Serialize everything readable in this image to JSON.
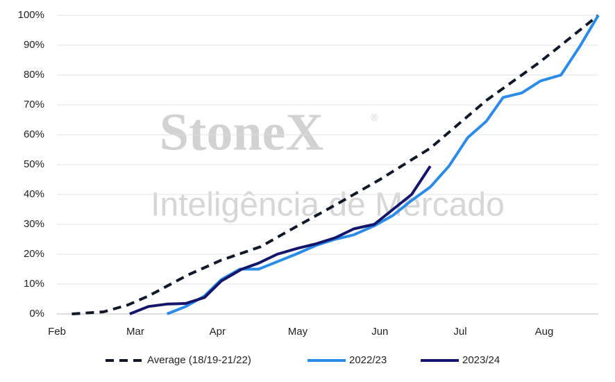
{
  "chart_data": {
    "type": "line",
    "watermark": {
      "brand": "StoneX",
      "registered": "®",
      "tagline": "Inteligência de Mercado"
    },
    "xlim": [
      0,
      29
    ],
    "xticks": [
      {
        "value": 0,
        "label": "Feb"
      },
      {
        "value": 4.2,
        "label": "Mar"
      },
      {
        "value": 8.6,
        "label": "Apr"
      },
      {
        "value": 12.9,
        "label": "May"
      },
      {
        "value": 17.3,
        "label": "Jun"
      },
      {
        "value": 21.6,
        "label": "Jul"
      },
      {
        "value": 26.1,
        "label": "Aug"
      }
    ],
    "ylim": [
      0,
      100
    ],
    "yticks": [
      {
        "value": 0,
        "label": "0%"
      },
      {
        "value": 10,
        "label": "10%"
      },
      {
        "value": 20,
        "label": "20%"
      },
      {
        "value": 30,
        "label": "30%"
      },
      {
        "value": 40,
        "label": "40%"
      },
      {
        "value": 50,
        "label": "50%"
      },
      {
        "value": 60,
        "label": "60%"
      },
      {
        "value": 70,
        "label": "70%"
      },
      {
        "value": 80,
        "label": "80%"
      },
      {
        "value": 90,
        "label": "90%"
      },
      {
        "value": 100,
        "label": "100%"
      }
    ],
    "grid": true,
    "legend": "bottom",
    "series": [
      {
        "name": "Average (18/19-21/22)",
        "color": "#111827",
        "style": "dashed",
        "x": [
          0.8,
          2.5,
          3.8,
          4.9,
          7,
          8.8,
          10.9,
          12.9,
          15.2,
          17.3,
          20,
          23,
          25.9,
          29
        ],
        "values": [
          0,
          0.7,
          3,
          6,
          13,
          18,
          22.5,
          29.5,
          37.5,
          45,
          55.5,
          71.5,
          84.5,
          100
        ]
      },
      {
        "name": "2022/23",
        "color": "#2b8be8",
        "style": "solid",
        "x": [
          5.9,
          6.9,
          7.9,
          8.8,
          9.8,
          10.8,
          11.8,
          12.8,
          13.9,
          14.9,
          15.9,
          17,
          18,
          19,
          20,
          21,
          22,
          23,
          23.9,
          24.9,
          25.9,
          27,
          28,
          29
        ],
        "values": [
          0,
          2.5,
          6,
          11.5,
          15,
          15,
          17.5,
          20,
          23,
          25,
          26.5,
          29.5,
          33,
          38,
          42.5,
          49.5,
          59,
          64.5,
          72.5,
          74,
          78,
          80,
          89.5,
          100
        ]
      },
      {
        "name": "2023/24",
        "color": "#15166b",
        "style": "solid",
        "x": [
          3.9,
          4.9,
          5.9,
          6.9,
          7.9,
          8.8,
          9.9,
          10.8,
          11.8,
          12.9,
          13.9,
          14.9,
          15.9,
          17,
          18,
          19,
          20
        ],
        "values": [
          0,
          2.5,
          3.3,
          3.5,
          5.5,
          11,
          15,
          17,
          20,
          22,
          23.5,
          25.5,
          28.5,
          30,
          35,
          40,
          49.5
        ]
      }
    ]
  }
}
